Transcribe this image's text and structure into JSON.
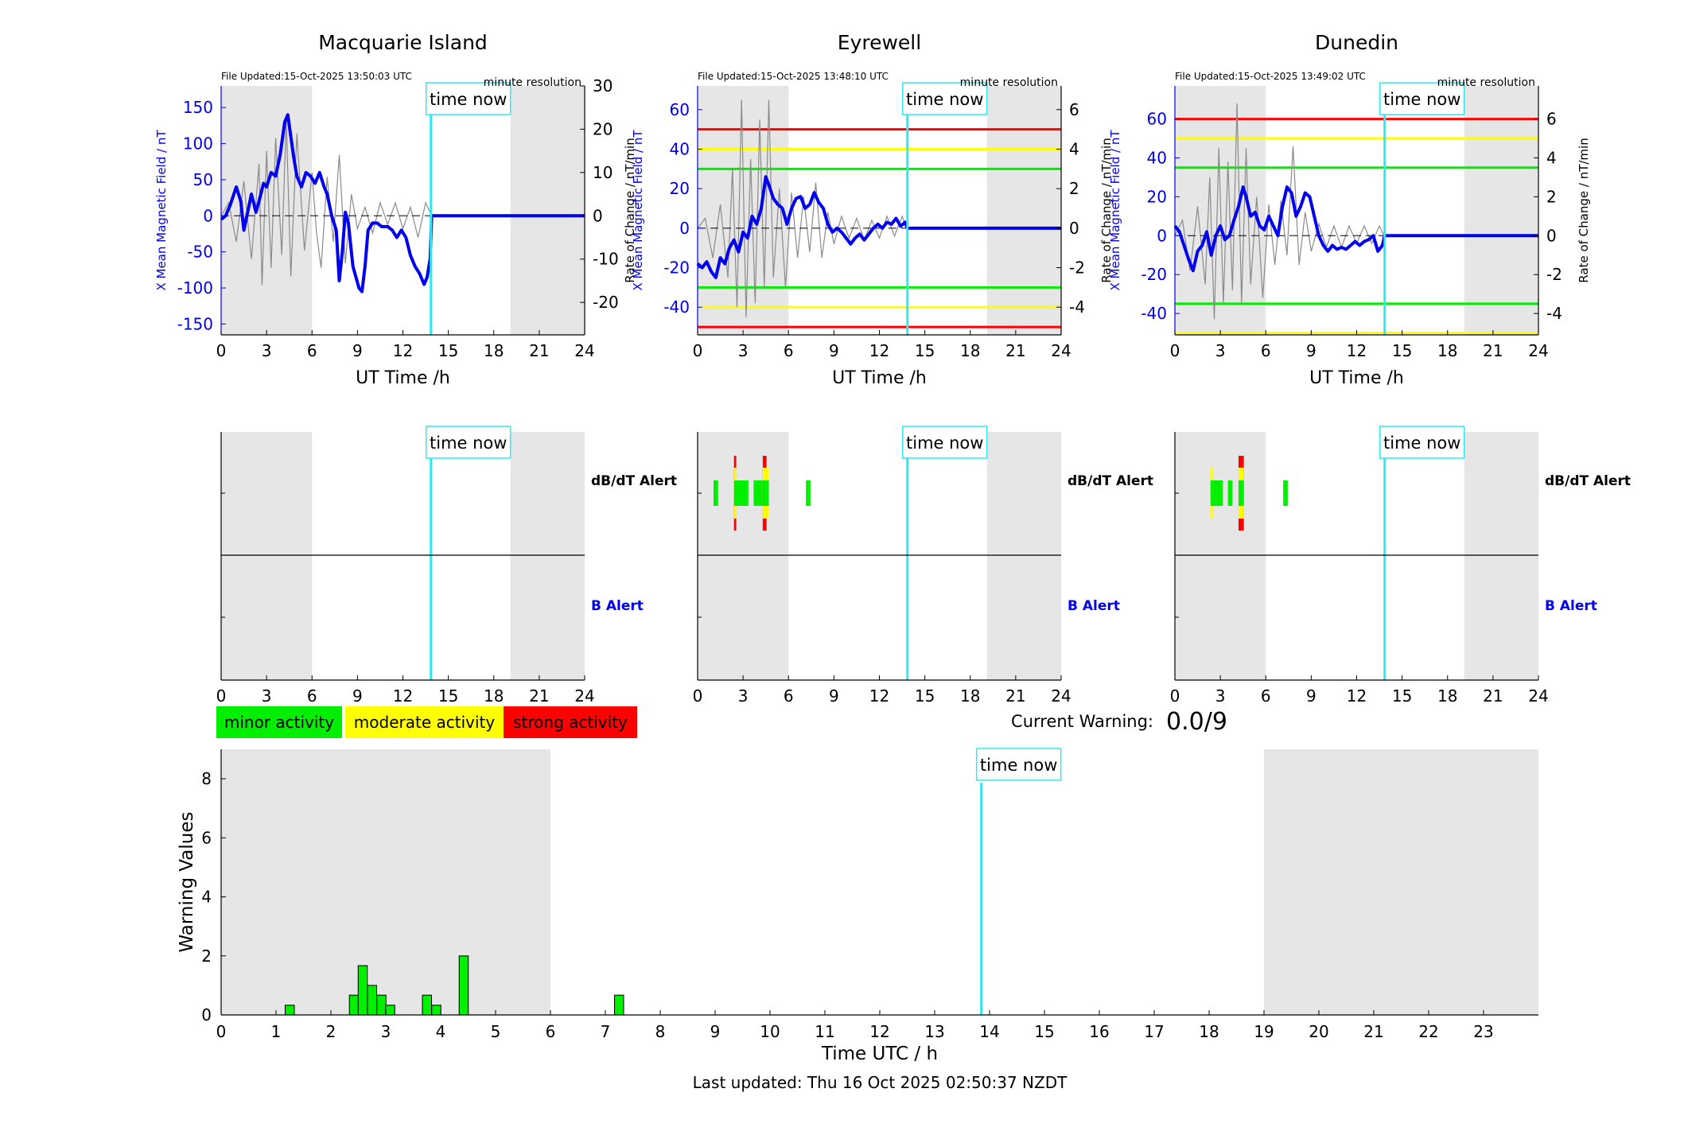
{
  "labels": {
    "time_now": "time now",
    "dbdt_alert": "dB/dT Alert",
    "b_alert": "B Alert",
    "resolution": "minute resolution",
    "current_warning_label": "Current Warning:",
    "current_warning_value": "0.0/9",
    "last_updated": "Last updated: Thu 16 Oct 2025 02:50:37 NZDT"
  },
  "legend": [
    {
      "label": "minor activity",
      "color": "#00ee00"
    },
    {
      "label": "moderate activity",
      "color": "#ffff00"
    },
    {
      "label": "strong activity",
      "color": "#ff0000"
    }
  ],
  "colors": {
    "field_line": "#0000ee",
    "rate_line": "#8a8a8a",
    "time_now_line": "#33e6f0",
    "night_shade": "#e6e6e6",
    "threshold_green": "#00ee00",
    "threshold_yellow": "#ffff00",
    "threshold_red": "#ff0000"
  },
  "chart_data": [
    {
      "type": "line",
      "title": "Macquarie Island",
      "file_updated": "File Updated:15-Oct-2025 13:50:03 UTC",
      "xlabel": "UT Time /h",
      "ylabel_left": "X Mean Magnetic Field / nT",
      "ylabel_right": "Rate of Change / nT/min",
      "xlim": [
        0,
        24
      ],
      "xticks": [
        0,
        3,
        6,
        9,
        12,
        15,
        18,
        21,
        24
      ],
      "ylim_left": [
        -165,
        180
      ],
      "yticks_left": [
        -150,
        -100,
        -50,
        0,
        50,
        100,
        150
      ],
      "ylim_right": [
        -27.5,
        30
      ],
      "yticks_right": [
        -20,
        -10,
        0,
        10,
        20,
        30
      ],
      "night_shading": [
        [
          0,
          6
        ],
        [
          19.1,
          24
        ]
      ],
      "time_now": 13.85,
      "thresholds": [],
      "series": [
        {
          "name": "X Mean Magnetic Field",
          "x": [
            0,
            0.3,
            0.6,
            1.0,
            1.3,
            1.5,
            1.8,
            2.0,
            2.3,
            2.5,
            2.8,
            3.0,
            3.3,
            3.6,
            3.9,
            4.2,
            4.4,
            4.6,
            4.8,
            5.0,
            5.3,
            5.6,
            5.9,
            6.2,
            6.5,
            6.8,
            7.0,
            7.3,
            7.6,
            7.8,
            8.0,
            8.2,
            8.4,
            8.7,
            8.9,
            9.1,
            9.3,
            9.5,
            9.7,
            10.0,
            10.3,
            10.6,
            11.0,
            11.3,
            11.6,
            11.9,
            12.2,
            12.5,
            12.8,
            13.1,
            13.4,
            13.6,
            13.8,
            13.9,
            14.5,
            18,
            21,
            24
          ],
          "y": [
            -5,
            0,
            15,
            40,
            20,
            -20,
            10,
            30,
            5,
            20,
            45,
            40,
            60,
            55,
            85,
            130,
            140,
            110,
            80,
            55,
            40,
            60,
            55,
            45,
            60,
            40,
            30,
            0,
            -20,
            -90,
            -50,
            5,
            -10,
            -70,
            -85,
            -100,
            -105,
            -70,
            -20,
            -10,
            -10,
            -15,
            -15,
            -20,
            -30,
            -20,
            -30,
            -55,
            -70,
            -80,
            -95,
            -85,
            -60,
            0,
            0,
            0,
            0,
            0
          ]
        },
        {
          "name": "Rate of Change",
          "x": [
            0,
            0.5,
            1.0,
            1.5,
            2.0,
            2.5,
            2.7,
            3.0,
            3.3,
            3.6,
            4.0,
            4.3,
            4.6,
            5.0,
            5.5,
            6.0,
            6.3,
            6.6,
            7.0,
            7.4,
            7.8,
            8.2,
            8.6,
            9.0,
            9.5,
            10.0,
            10.5,
            11.0,
            11.5,
            12.0,
            12.5,
            13.0,
            13.5,
            13.9
          ],
          "y": [
            0,
            3,
            -6,
            8,
            -10,
            12,
            -16,
            15,
            -12,
            18,
            -9,
            22,
            -14,
            19,
            -8,
            10,
            -4,
            -12,
            9,
            -6,
            14,
            -11,
            5,
            -3,
            2,
            -4,
            3,
            -2,
            3,
            -3,
            2,
            -5,
            3,
            0
          ]
        }
      ]
    },
    {
      "type": "line",
      "title": "Eyrewell",
      "file_updated": "File Updated:15-Oct-2025 13:48:10 UTC",
      "xlabel": "UT Time /h",
      "ylabel_left": "X Mean Magnetic Field / nT",
      "ylabel_right": "Rate of Change / nT/min",
      "xlim": [
        0,
        24
      ],
      "xticks": [
        0,
        3,
        6,
        9,
        12,
        15,
        18,
        21,
        24
      ],
      "ylim_left": [
        -54,
        72
      ],
      "yticks_left": [
        -40,
        -20,
        0,
        20,
        40,
        60
      ],
      "ylim_right": [
        -5.4,
        7.2
      ],
      "yticks_right": [
        -4,
        -2,
        0,
        2,
        4,
        6
      ],
      "night_shading": [
        [
          0,
          6
        ],
        [
          19.1,
          24
        ]
      ],
      "time_now": 13.85,
      "thresholds": [
        {
          "value": 50,
          "color": "red"
        },
        {
          "value": 40,
          "color": "yellow"
        },
        {
          "value": 30,
          "color": "green"
        },
        {
          "value": -30,
          "color": "green"
        },
        {
          "value": -40,
          "color": "yellow"
        },
        {
          "value": -50,
          "color": "red"
        }
      ],
      "series": [
        {
          "name": "X Mean Magnetic Field",
          "x": [
            0,
            0.3,
            0.6,
            0.9,
            1.2,
            1.5,
            1.8,
            2.1,
            2.4,
            2.7,
            3.0,
            3.3,
            3.6,
            3.9,
            4.2,
            4.5,
            4.7,
            5.0,
            5.3,
            5.6,
            5.9,
            6.2,
            6.5,
            6.8,
            7.1,
            7.4,
            7.7,
            8.0,
            8.3,
            8.6,
            8.9,
            9.2,
            9.5,
            9.8,
            10.1,
            10.4,
            10.7,
            11.0,
            11.3,
            11.6,
            11.9,
            12.2,
            12.5,
            12.8,
            13.1,
            13.4,
            13.7,
            13.85,
            14.5,
            18,
            21,
            24
          ],
          "y": [
            -18,
            -20,
            -17,
            -22,
            -25,
            -15,
            -18,
            -10,
            -6,
            -12,
            -2,
            -5,
            6,
            2,
            10,
            26,
            22,
            15,
            12,
            10,
            2,
            10,
            15,
            16,
            10,
            12,
            18,
            13,
            10,
            2,
            -2,
            0,
            -2,
            -5,
            -8,
            -5,
            -3,
            -6,
            -3,
            0,
            2,
            0,
            3,
            2,
            5,
            1,
            3,
            0,
            0,
            0,
            0,
            0
          ]
        },
        {
          "name": "Rate of Change",
          "x": [
            0,
            0.5,
            1.0,
            1.5,
            2.0,
            2.3,
            2.6,
            2.9,
            3.2,
            3.5,
            3.8,
            4.1,
            4.4,
            4.7,
            5.0,
            5.4,
            5.8,
            6.2,
            6.6,
            7.0,
            7.4,
            7.8,
            8.2,
            8.6,
            9.0,
            9.5,
            10.0,
            10.5,
            11.0,
            11.5,
            12.0,
            12.5,
            13.0,
            13.5,
            13.8
          ],
          "y": [
            0,
            0.5,
            -1.5,
            1.2,
            -2.5,
            3,
            -4,
            6.5,
            -4.5,
            3.5,
            -3.8,
            5.5,
            -3,
            6.5,
            -2.5,
            2,
            -3,
            1.8,
            -1.5,
            1.6,
            -1.2,
            2.3,
            -1.5,
            0.8,
            -0.8,
            0.6,
            -0.5,
            0.5,
            -0.6,
            0.4,
            -0.5,
            0.6,
            -0.4,
            0.6,
            0
          ]
        }
      ]
    },
    {
      "type": "line",
      "title": "Dunedin",
      "file_updated": "File Updated:15-Oct-2025 13:49:02 UTC",
      "xlabel": "UT Time /h",
      "ylabel_left": "X Mean Magnetic Field / nT",
      "ylabel_right": "Rate of Change / nT/min",
      "xlim": [
        0,
        24
      ],
      "xticks": [
        0,
        3,
        6,
        9,
        12,
        15,
        18,
        21,
        24
      ],
      "ylim_left": [
        -51,
        77
      ],
      "yticks_left": [
        -40,
        -20,
        0,
        20,
        40,
        60
      ],
      "ylim_right": [
        -5.1,
        7.7
      ],
      "yticks_right": [
        -4,
        -2,
        0,
        2,
        4,
        6
      ],
      "night_shading": [
        [
          0,
          6
        ],
        [
          19.1,
          24
        ]
      ],
      "time_now": 13.85,
      "thresholds": [
        {
          "value": 60,
          "color": "red"
        },
        {
          "value": 50,
          "color": "yellow"
        },
        {
          "value": 35,
          "color": "green"
        },
        {
          "value": -35,
          "color": "green"
        },
        {
          "value": -50,
          "color": "yellow"
        }
      ],
      "series": [
        {
          "name": "X Mean Magnetic Field",
          "x": [
            0,
            0.3,
            0.6,
            0.9,
            1.2,
            1.5,
            1.8,
            2.1,
            2.4,
            2.7,
            3.0,
            3.3,
            3.6,
            3.9,
            4.2,
            4.5,
            4.7,
            5.0,
            5.3,
            5.6,
            5.9,
            6.2,
            6.5,
            6.8,
            7.1,
            7.4,
            7.7,
            8.0,
            8.3,
            8.6,
            8.9,
            9.2,
            9.5,
            9.8,
            10.1,
            10.4,
            10.7,
            11.0,
            11.3,
            11.6,
            11.9,
            12.2,
            12.5,
            12.8,
            13.1,
            13.4,
            13.7,
            13.85,
            14.5,
            18,
            21,
            24
          ],
          "y": [
            5,
            2,
            -5,
            -12,
            -18,
            -8,
            -5,
            2,
            -10,
            0,
            5,
            -2,
            0,
            8,
            15,
            25,
            20,
            10,
            12,
            5,
            3,
            10,
            5,
            0,
            15,
            25,
            22,
            10,
            15,
            22,
            20,
            10,
            0,
            -5,
            -8,
            -5,
            -7,
            -6,
            -7,
            -5,
            -3,
            -5,
            -3,
            -2,
            0,
            -8,
            -5,
            0,
            0,
            0,
            0,
            0
          ]
        },
        {
          "name": "Rate of Change",
          "x": [
            0,
            0.5,
            1.0,
            1.5,
            2.0,
            2.3,
            2.6,
            2.9,
            3.2,
            3.5,
            3.8,
            4.1,
            4.4,
            4.7,
            5.0,
            5.4,
            5.8,
            6.2,
            6.6,
            7.0,
            7.4,
            7.8,
            8.2,
            8.6,
            9.0,
            9.5,
            10.0,
            10.5,
            11.0,
            11.5,
            12.0,
            12.5,
            13.0,
            13.5,
            13.8
          ],
          "y": [
            0,
            0.8,
            -1.8,
            1.5,
            -2.5,
            3,
            -4.3,
            4.5,
            -3.5,
            3.8,
            -2.8,
            6.8,
            -3.5,
            4.5,
            -2.5,
            2,
            -3.2,
            1.6,
            -1.5,
            1.8,
            -1,
            4.6,
            -1.5,
            1.2,
            -0.8,
            0.6,
            -0.6,
            0.5,
            -0.6,
            0.5,
            -0.4,
            0.5,
            -0.4,
            0.5,
            0
          ]
        }
      ]
    },
    {
      "type": "heatmap",
      "role": "alert-strip",
      "xlim": [
        0,
        24
      ],
      "xticks": [
        0,
        3,
        6,
        9,
        12,
        15,
        18,
        21,
        24
      ],
      "night_shading": [
        [
          0,
          6
        ],
        [
          19.1,
          24
        ]
      ],
      "time_now": 13.85,
      "dbdt_alerts": [],
      "b_alerts": []
    },
    {
      "type": "heatmap",
      "role": "alert-strip",
      "xlim": [
        0,
        24
      ],
      "xticks": [
        0,
        3,
        6,
        9,
        12,
        15,
        18,
        21,
        24
      ],
      "night_shading": [
        [
          0,
          6
        ],
        [
          19.1,
          24
        ]
      ],
      "time_now": 13.85,
      "dbdt_alerts": [
        {
          "start": 1.05,
          "end": 1.35,
          "level": "minor"
        },
        {
          "start": 2.4,
          "end": 2.55,
          "level": "strong"
        },
        {
          "start": 2.55,
          "end": 3.35,
          "level": "minor"
        },
        {
          "start": 3.7,
          "end": 4.3,
          "level": "minor"
        },
        {
          "start": 4.3,
          "end": 4.55,
          "level": "strong"
        },
        {
          "start": 4.55,
          "end": 4.7,
          "level": "moderate"
        },
        {
          "start": 7.15,
          "end": 7.45,
          "level": "minor"
        }
      ],
      "b_alerts": []
    },
    {
      "type": "heatmap",
      "role": "alert-strip",
      "xlim": [
        0,
        24
      ],
      "xticks": [
        0,
        3,
        6,
        9,
        12,
        15,
        18,
        21,
        24
      ],
      "night_shading": [
        [
          0,
          6
        ],
        [
          19.1,
          24
        ]
      ],
      "time_now": 13.85,
      "dbdt_alerts": [
        {
          "start": 2.35,
          "end": 2.5,
          "level": "moderate"
        },
        {
          "start": 2.5,
          "end": 3.15,
          "level": "minor"
        },
        {
          "start": 3.5,
          "end": 3.8,
          "level": "minor"
        },
        {
          "start": 4.2,
          "end": 4.55,
          "level": "strong"
        },
        {
          "start": 7.15,
          "end": 7.45,
          "level": "minor"
        }
      ],
      "b_alerts": []
    },
    {
      "type": "bar",
      "xlabel": "Time UTC / h",
      "ylabel": "Warning Values",
      "xlim": [
        0,
        24
      ],
      "xticks": [
        0,
        1,
        2,
        3,
        4,
        5,
        6,
        7,
        8,
        9,
        10,
        11,
        12,
        13,
        14,
        15,
        16,
        17,
        18,
        19,
        20,
        21,
        22,
        23
      ],
      "ylim": [
        0,
        9
      ],
      "yticks": [
        0,
        2,
        4,
        6,
        8
      ],
      "night_shading": [
        [
          0,
          6
        ],
        [
          19,
          24
        ]
      ],
      "time_now": 13.85,
      "bar_width": 0.167,
      "x": [
        1.25,
        2.42,
        2.58,
        2.75,
        2.92,
        3.08,
        3.75,
        3.92,
        4.42,
        7.25
      ],
      "values": [
        0.33,
        0.67,
        1.67,
        1.0,
        0.67,
        0.33,
        0.67,
        0.33,
        2.0,
        0.67
      ]
    }
  ]
}
